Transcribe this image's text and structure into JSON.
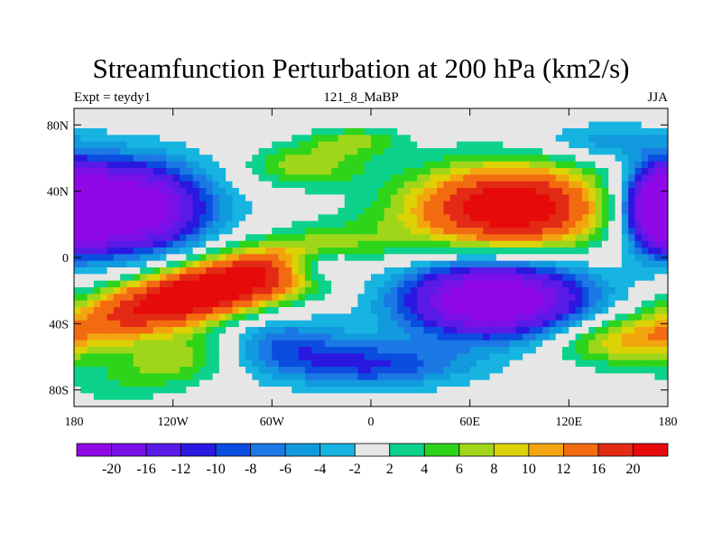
{
  "header": {
    "title": "Streamfunction Perturbation at 200 hPa (km2/s)",
    "left_label": "Expt = teydy1",
    "center_label": "121_8_MaBP",
    "right_label": "JJA"
  },
  "chart_data": {
    "type": "heatmap",
    "variable": "Streamfunction perturbation",
    "level": "200 hPa",
    "units": "km2/s",
    "season": "JJA",
    "xlim": [
      -180,
      180
    ],
    "ylim": [
      -90,
      90
    ],
    "x_ticks": [
      {
        "value": -180,
        "label": "180"
      },
      {
        "value": -120,
        "label": "120W"
      },
      {
        "value": -60,
        "label": "60W"
      },
      {
        "value": 0,
        "label": "0"
      },
      {
        "value": 60,
        "label": "60E"
      },
      {
        "value": 120,
        "label": "120E"
      },
      {
        "value": 180,
        "label": "180"
      }
    ],
    "y_ticks": [
      {
        "value": 80,
        "label": "80N"
      },
      {
        "value": 40,
        "label": "40N"
      },
      {
        "value": 0,
        "label": "0"
      },
      {
        "value": -40,
        "label": "40S"
      },
      {
        "value": -80,
        "label": "80S"
      }
    ],
    "contour_levels": [
      -20,
      -16,
      -12,
      -10,
      -8,
      -6,
      -4,
      -2,
      2,
      4,
      6,
      8,
      10,
      12,
      16,
      20
    ],
    "colorbar_labels": [
      "-20",
      "-16",
      "-12",
      "-10",
      "-8",
      "-6",
      "-4",
      "-2",
      "2",
      "4",
      "6",
      "8",
      "10",
      "12",
      "16",
      "20"
    ],
    "colorbar_colors": [
      "#9108e7",
      "#7b10e8",
      "#5a1ae8",
      "#2b18e0",
      "#0b4de0",
      "#1c78e4",
      "#119ade",
      "#17b4e1",
      "#e6e6e6",
      "#0cd28c",
      "#2ed41a",
      "#a0d61a",
      "#dcd205",
      "#f3a50f",
      "#f36b10",
      "#e32a14",
      "#e70a0a"
    ],
    "features": [
      {
        "name": "North Pacific / North America cyclonic centre",
        "lon": -150,
        "lat": 30,
        "value": -22
      },
      {
        "name": "Subtropical South Pacific anticyclone",
        "lon": -100,
        "lat": -20,
        "value": 22
      },
      {
        "name": "Tibetan / Asian anticyclone",
        "lon": 85,
        "lat": 30,
        "value": 20
      },
      {
        "name": "Indian Ocean southern cyclonic centre",
        "lon": 75,
        "lat": -25,
        "value": -22
      },
      {
        "name": "West Pacific northern cyclonic centre",
        "lon": 178,
        "lat": 30,
        "value": -20
      }
    ],
    "grid": false,
    "legend": "bottom colorbar"
  }
}
